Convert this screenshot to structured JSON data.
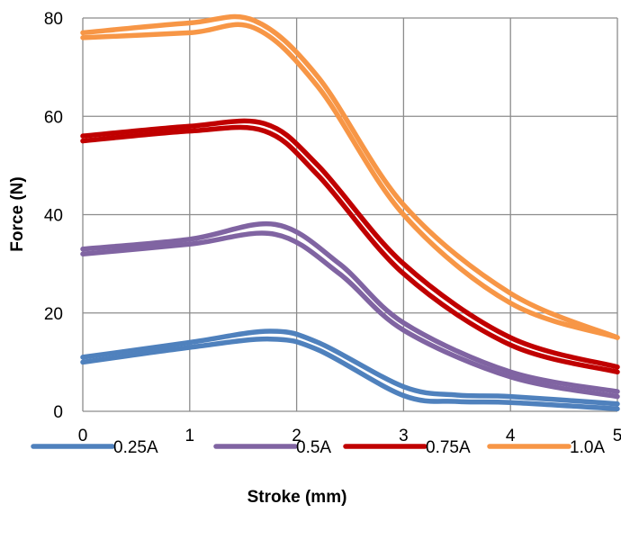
{
  "chart_data": {
    "type": "line",
    "title": "",
    "xlabel": "Stroke (mm)",
    "ylabel": "Force (N)",
    "xlim": [
      0,
      5
    ],
    "ylim": [
      0,
      80
    ],
    "x_ticks": [
      "0",
      "1",
      "2",
      "3",
      "4",
      "5"
    ],
    "y_ticks": [
      "0",
      "20",
      "40",
      "60",
      "80"
    ],
    "grid": true,
    "legend_position": "bottom",
    "legend": [
      "0.25A",
      "0.5A",
      "0.75A",
      "1.0A"
    ],
    "series": [
      {
        "name": "0.25A",
        "color": "#4f81bd",
        "upper": {
          "x": [
            0,
            1,
            1.75,
            2.2,
            3,
            3.5,
            4,
            5
          ],
          "y": [
            11,
            14,
            16.3,
            14,
            5,
            3.3,
            3,
            1.5
          ]
        },
        "lower": {
          "x": [
            0,
            1,
            1.75,
            2.2,
            3,
            3.5,
            4,
            5
          ],
          "y": [
            10,
            13,
            14.7,
            12.5,
            3.2,
            2,
            1.8,
            0.5
          ]
        }
      },
      {
        "name": "0.5A",
        "color": "#8064a2",
        "upper": {
          "x": [
            0,
            1,
            1.8,
            2.4,
            3,
            4,
            5
          ],
          "y": [
            33,
            35,
            38,
            30,
            18,
            8,
            4
          ]
        },
        "lower": {
          "x": [
            0,
            1,
            1.8,
            2.4,
            3,
            4,
            5
          ],
          "y": [
            32,
            34,
            36,
            28,
            16.5,
            7,
            3
          ]
        }
      },
      {
        "name": "0.75A",
        "color": "#c00000",
        "upper": {
          "x": [
            0,
            1,
            1.7,
            2.2,
            3,
            4,
            5
          ],
          "y": [
            56,
            58,
            58.5,
            50,
            30,
            15,
            9
          ]
        },
        "lower": {
          "x": [
            0,
            1,
            1.7,
            2.2,
            3,
            4,
            5
          ],
          "y": [
            55,
            57,
            57,
            48,
            28,
            13.5,
            8
          ]
        }
      },
      {
        "name": "1.0A",
        "color": "#f79646",
        "upper": {
          "x": [
            0,
            1,
            1.6,
            2.2,
            3,
            4,
            5
          ],
          "y": [
            77,
            79,
            79.5,
            68,
            42,
            24,
            15
          ]
        },
        "lower": {
          "x": [
            0,
            1,
            1.6,
            2.2,
            3,
            4,
            5
          ],
          "y": [
            76,
            77,
            78,
            66,
            40,
            22,
            15
          ]
        }
      }
    ]
  }
}
